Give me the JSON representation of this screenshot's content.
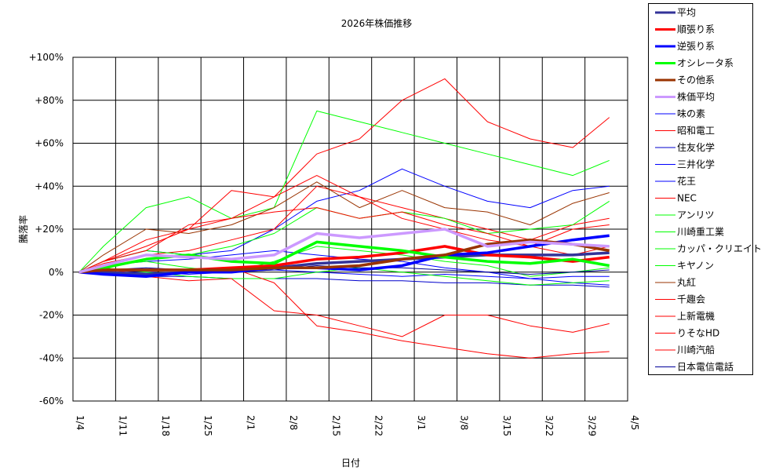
{
  "chart_data": {
    "type": "line",
    "title": "2026年株価推移",
    "xlabel": "日付",
    "ylabel": "騰落率",
    "x_tick_labels": [
      "1/4",
      "1/11",
      "1/18",
      "1/25",
      "2/1",
      "2/8",
      "2/15",
      "2/22",
      "3/1",
      "3/8",
      "3/15",
      "3/22",
      "3/29",
      "4/5"
    ],
    "y_tick_labels": [
      "+100%",
      "+80%",
      "+60%",
      "+40%",
      "+20%",
      "0%",
      "-20%",
      "-40%",
      "-60%"
    ],
    "ylim": [
      -60,
      100
    ],
    "xlim": [
      "1/4",
      "4/5"
    ],
    "grid": true,
    "legend_position": "right",
    "x": [
      "1/5",
      "1/9",
      "1/16",
      "1/23",
      "1/30",
      "2/6",
      "2/13",
      "2/20",
      "2/27",
      "3/6",
      "3/13",
      "3/20",
      "3/27",
      "4/2"
    ],
    "series": [
      {
        "name": "平均",
        "color": "#333399",
        "thick": true,
        "values": [
          0,
          0,
          -1,
          0,
          1,
          2,
          4,
          5,
          6,
          7,
          8,
          8,
          8,
          9
        ]
      },
      {
        "name": "順張り系",
        "color": "#ff0000",
        "thick": true,
        "values": [
          0,
          1,
          1,
          1,
          2,
          3,
          6,
          7,
          9,
          12,
          8,
          7,
          5,
          7
        ]
      },
      {
        "name": "逆張り系",
        "color": "#0000ff",
        "thick": true,
        "values": [
          0,
          -1,
          -2,
          0,
          0,
          2,
          2,
          1,
          3,
          8,
          9,
          12,
          15,
          17
        ]
      },
      {
        "name": "オシレータ系",
        "color": "#00ff00",
        "thick": true,
        "values": [
          0,
          2,
          6,
          8,
          5,
          4,
          14,
          12,
          10,
          7,
          5,
          4,
          6,
          3
        ]
      },
      {
        "name": "その他系",
        "color": "#993300",
        "thick": true,
        "values": [
          0,
          1,
          1,
          1,
          1,
          2,
          2,
          3,
          6,
          8,
          13,
          15,
          13,
          10
        ]
      },
      {
        "name": "株価平均",
        "color": "#cc99ff",
        "thick": true,
        "values": [
          0,
          3,
          8,
          7,
          6,
          8,
          18,
          16,
          18,
          20,
          12,
          14,
          13,
          12
        ]
      },
      {
        "name": "味の素",
        "color": "#0000ff",
        "thick": false,
        "values": [
          0,
          1,
          0,
          -1,
          0,
          1,
          0,
          -1,
          -2,
          -1,
          -2,
          -3,
          -2,
          -2
        ]
      },
      {
        "name": "昭和電工",
        "color": "#ff0000",
        "thick": false,
        "values": [
          0,
          5,
          15,
          20,
          25,
          35,
          55,
          62,
          80,
          90,
          70,
          62,
          58,
          72
        ]
      },
      {
        "name": "住友化学",
        "color": "#0000cc",
        "thick": false,
        "values": [
          0,
          -1,
          -2,
          -2,
          -3,
          -3,
          -3,
          -4,
          -4,
          -5,
          -5,
          -6,
          -6,
          -7
        ]
      },
      {
        "name": "三井化学",
        "color": "#0000ff",
        "thick": false,
        "values": [
          0,
          5,
          10,
          8,
          10,
          20,
          33,
          38,
          48,
          40,
          33,
          30,
          38,
          40
        ]
      },
      {
        "name": "花王",
        "color": "#0000ff",
        "thick": false,
        "values": [
          0,
          3,
          5,
          6,
          8,
          10,
          8,
          6,
          5,
          2,
          0,
          -3,
          -5,
          -6
        ]
      },
      {
        "name": "NEC",
        "color": "#ff0000",
        "thick": false,
        "values": [
          0,
          4,
          8,
          10,
          15,
          20,
          40,
          35,
          30,
          25,
          20,
          15,
          22,
          25
        ]
      },
      {
        "name": "アンリツ",
        "color": "#00ff00",
        "thick": false,
        "values": [
          0,
          12,
          30,
          35,
          25,
          30,
          75,
          70,
          65,
          60,
          55,
          50,
          45,
          52
        ]
      },
      {
        "name": "川崎重工業",
        "color": "#00ff00",
        "thick": false,
        "values": [
          0,
          5,
          10,
          8,
          12,
          18,
          30,
          25,
          28,
          25,
          18,
          20,
          22,
          33
        ]
      },
      {
        "name": "カッパ・クリエイト",
        "color": "#00ff00",
        "thick": false,
        "values": [
          0,
          2,
          0,
          -2,
          -3,
          -3,
          0,
          2,
          0,
          -2,
          -4,
          -6,
          -5,
          -4
        ]
      },
      {
        "name": "キヤノン",
        "color": "#00ff00",
        "thick": false,
        "values": [
          0,
          3,
          5,
          2,
          0,
          5,
          12,
          10,
          8,
          5,
          3,
          -2,
          0,
          2
        ]
      },
      {
        "name": "丸紅",
        "color": "#993300",
        "thick": false,
        "values": [
          0,
          8,
          20,
          18,
          22,
          30,
          42,
          30,
          38,
          30,
          28,
          22,
          32,
          37
        ]
      },
      {
        "name": "千趣会",
        "color": "#ff0000",
        "thick": false,
        "values": [
          0,
          2,
          -2,
          -4,
          -3,
          -18,
          -20,
          -25,
          -30,
          -20,
          -20,
          -25,
          -28,
          -24
        ]
      },
      {
        "name": "上新電機",
        "color": "#ff0000",
        "thick": false,
        "values": [
          0,
          5,
          12,
          20,
          38,
          35,
          45,
          35,
          25,
          20,
          15,
          12,
          8,
          12
        ]
      },
      {
        "name": "りそなHD",
        "color": "#ff0000",
        "thick": false,
        "values": [
          0,
          0,
          -1,
          0,
          2,
          -5,
          -25,
          -28,
          -32,
          -35,
          -38,
          -40,
          -38,
          -37
        ]
      },
      {
        "name": "川崎汽船",
        "color": "#ff0000",
        "thick": false,
        "values": [
          0,
          5,
          10,
          22,
          25,
          28,
          30,
          25,
          28,
          22,
          18,
          12,
          20,
          22
        ]
      },
      {
        "name": "日本電信電話",
        "color": "#000099",
        "thick": false,
        "values": [
          0,
          1,
          2,
          1,
          0,
          1,
          3,
          2,
          2,
          1,
          0,
          -1,
          0,
          1
        ]
      }
    ]
  }
}
